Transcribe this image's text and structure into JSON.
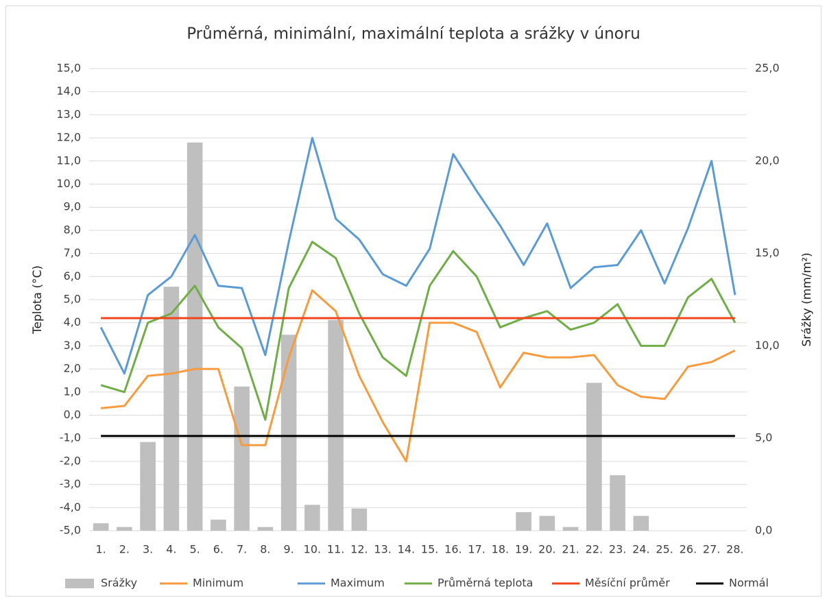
{
  "chart_data": {
    "type": "line",
    "title": "Průměrná, minimální, maximální teplota a srážky v únoru",
    "ylabel": "Teplota (°C)",
    "y2label": "Srážky (mm/m²)",
    "categories": [
      "1.",
      "2.",
      "3.",
      "4.",
      "5.",
      "6.",
      "7.",
      "8.",
      "9.",
      "10.",
      "11.",
      "12.",
      "13.",
      "14.",
      "15.",
      "16.",
      "17.",
      "18.",
      "19.",
      "20.",
      "21.",
      "22.",
      "23.",
      "24.",
      "25.",
      "26.",
      "27.",
      "28."
    ],
    "ylim": [
      -5,
      15
    ],
    "yticks": [
      {
        "value": -5,
        "label": "-5,0"
      },
      {
        "value": -4,
        "label": "-4,0"
      },
      {
        "value": -3,
        "label": "-3,0"
      },
      {
        "value": -2,
        "label": "-2,0"
      },
      {
        "value": -1,
        "label": "-1,0"
      },
      {
        "value": 0,
        "label": "0,0"
      },
      {
        "value": 1,
        "label": "1,0"
      },
      {
        "value": 2,
        "label": "2,0"
      },
      {
        "value": 3,
        "label": "3,0"
      },
      {
        "value": 4,
        "label": "4,0"
      },
      {
        "value": 5,
        "label": "5,0"
      },
      {
        "value": 6,
        "label": "6,0"
      },
      {
        "value": 7,
        "label": "7,0"
      },
      {
        "value": 8,
        "label": "8,0"
      },
      {
        "value": 9,
        "label": "9,0"
      },
      {
        "value": 10,
        "label": "10,0"
      },
      {
        "value": 11,
        "label": "11,0"
      },
      {
        "value": 12,
        "label": "12,0"
      },
      {
        "value": 13,
        "label": "13,0"
      },
      {
        "value": 14,
        "label": "14,0"
      },
      {
        "value": 15,
        "label": "15,0"
      }
    ],
    "y2lim": [
      0,
      25
    ],
    "y2ticks": [
      {
        "value": 0,
        "label": "0,0"
      },
      {
        "value": 5,
        "label": "5,0"
      },
      {
        "value": 10,
        "label": "10,0"
      },
      {
        "value": 15,
        "label": "15,0"
      },
      {
        "value": 20,
        "label": "20,0"
      },
      {
        "value": 25,
        "label": "25,0"
      }
    ],
    "grid": true,
    "legend": "bottom",
    "series": [
      {
        "name": "Srážky",
        "type": "bar",
        "axis": "y2",
        "color": "#bfbfbf",
        "values": [
          0.4,
          0.2,
          4.8,
          13.2,
          21.0,
          0.6,
          7.8,
          0.2,
          10.6,
          1.4,
          11.4,
          1.2,
          0,
          0,
          0,
          0,
          0,
          0,
          1.0,
          0.8,
          0.2,
          8.0,
          3.0,
          0.8,
          0,
          0,
          0,
          0
        ]
      },
      {
        "name": "Minimum",
        "type": "line",
        "color": "#f79b3e",
        "values": [
          0.3,
          0.4,
          1.7,
          1.8,
          2.0,
          2.0,
          -1.3,
          -1.3,
          2.5,
          5.4,
          4.5,
          1.7,
          -0.3,
          -2.0,
          4.0,
          4.0,
          3.6,
          1.2,
          2.7,
          2.5,
          2.5,
          2.6,
          1.3,
          0.8,
          0.7,
          2.1,
          2.3,
          2.8
        ]
      },
      {
        "name": "Maximum",
        "type": "line",
        "color": "#5b9bd5",
        "values": [
          3.8,
          1.8,
          5.2,
          6.0,
          7.8,
          5.6,
          5.5,
          2.6,
          7.5,
          12.0,
          8.5,
          7.6,
          6.1,
          5.6,
          7.2,
          11.3,
          9.7,
          8.2,
          6.5,
          8.3,
          5.5,
          6.4,
          6.5,
          8.0,
          5.7,
          8.1,
          11.0,
          5.2
        ]
      },
      {
        "name": "Průměrná teplota",
        "type": "line",
        "color": "#70ad47",
        "values": [
          1.3,
          1.0,
          4.0,
          4.4,
          5.6,
          3.8,
          2.9,
          -0.2,
          5.5,
          7.5,
          6.8,
          4.4,
          2.5,
          1.7,
          5.6,
          7.1,
          6.0,
          3.8,
          4.2,
          4.5,
          3.7,
          4.0,
          4.8,
          3.0,
          3.0,
          5.1,
          5.9,
          4.0
        ]
      },
      {
        "name": "Měsíční průměr",
        "type": "line",
        "color": "#f0441c",
        "values": [
          4.2,
          4.2,
          4.2,
          4.2,
          4.2,
          4.2,
          4.2,
          4.2,
          4.2,
          4.2,
          4.2,
          4.2,
          4.2,
          4.2,
          4.2,
          4.2,
          4.2,
          4.2,
          4.2,
          4.2,
          4.2,
          4.2,
          4.2,
          4.2,
          4.2,
          4.2,
          4.2,
          4.2
        ]
      },
      {
        "name": "Normál",
        "type": "line",
        "color": "#000000",
        "values": [
          -0.9,
          -0.9,
          -0.9,
          -0.9,
          -0.9,
          -0.9,
          -0.9,
          -0.9,
          -0.9,
          -0.9,
          -0.9,
          -0.9,
          -0.9,
          -0.9,
          -0.9,
          -0.9,
          -0.9,
          -0.9,
          -0.9,
          -0.9,
          -0.9,
          -0.9,
          -0.9,
          -0.9,
          -0.9,
          -0.9,
          -0.9,
          -0.9
        ]
      }
    ]
  }
}
